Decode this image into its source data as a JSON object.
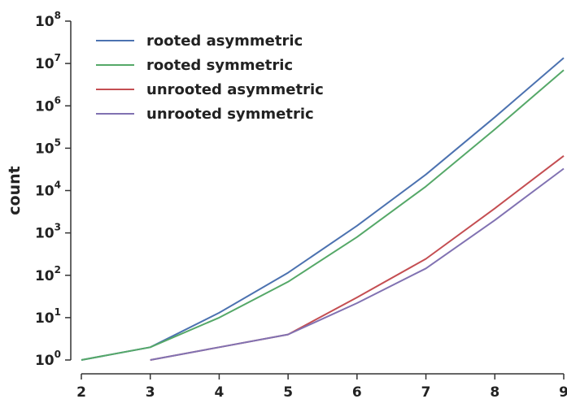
{
  "chart_data": {
    "type": "line",
    "title": "",
    "xlabel": "",
    "ylabel": "count",
    "y_scale": "log",
    "xlim": [
      2,
      9
    ],
    "ylim": [
      1,
      100000000
    ],
    "x_ticks": [
      "2",
      "3",
      "4",
      "5",
      "6",
      "7",
      "8",
      "9"
    ],
    "y_ticks": [
      {
        "base": "10",
        "exp": "0"
      },
      {
        "base": "10",
        "exp": "1"
      },
      {
        "base": "10",
        "exp": "2"
      },
      {
        "base": "10",
        "exp": "3"
      },
      {
        "base": "10",
        "exp": "4"
      },
      {
        "base": "10",
        "exp": "5"
      },
      {
        "base": "10",
        "exp": "6"
      },
      {
        "base": "10",
        "exp": "7"
      },
      {
        "base": "10",
        "exp": "8"
      }
    ],
    "grid": false,
    "legend_position": "top-left",
    "series": [
      {
        "name": "rooted asymmetric",
        "color": "#4c72b0",
        "x": [
          2,
          3,
          4,
          5,
          6,
          7,
          8,
          9
        ],
        "values": [
          1,
          2,
          13,
          115,
          1480,
          24000,
          540000,
          13500000
        ]
      },
      {
        "name": "rooted symmetric",
        "color": "#55a868",
        "x": [
          2,
          3,
          4,
          5,
          6,
          7,
          8,
          9
        ],
        "values": [
          1,
          2,
          10,
          70,
          800,
          12500,
          280000,
          7000000
        ]
      },
      {
        "name": "unrooted asymmetric",
        "color": "#c44e52",
        "x": [
          3,
          4,
          5,
          6,
          7,
          8,
          9
        ],
        "values": [
          1,
          2,
          4,
          30,
          245,
          3800,
          66000
        ]
      },
      {
        "name": "unrooted symmetric",
        "color": "#8172b2",
        "x": [
          3,
          4,
          5,
          6,
          7,
          8,
          9
        ],
        "values": [
          1,
          2,
          4,
          22,
          145,
          2000,
          33000
        ]
      }
    ]
  }
}
